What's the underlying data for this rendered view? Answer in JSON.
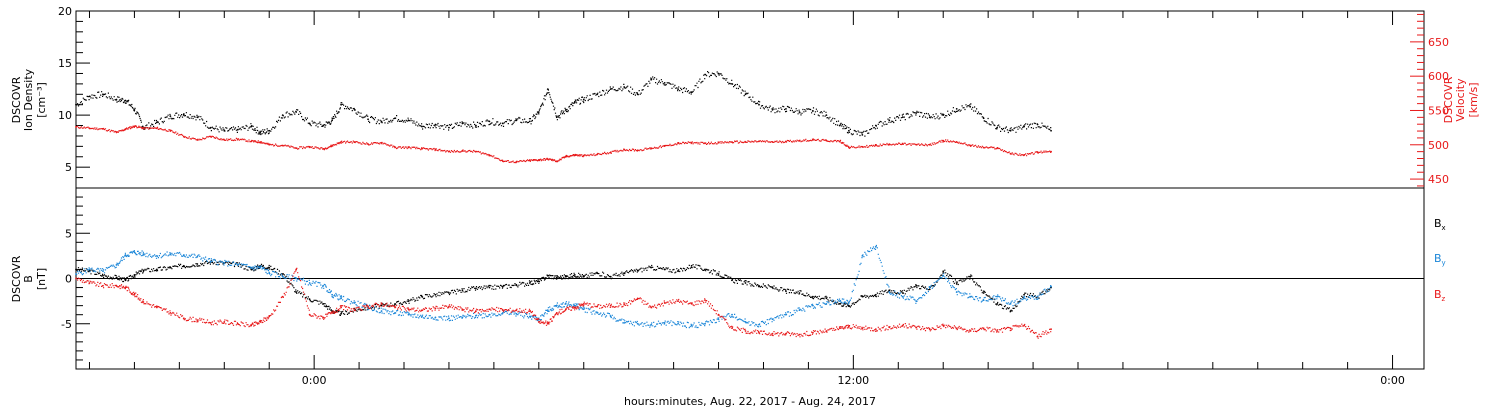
{
  "colors": {
    "black": "#000000",
    "red": "#e8191a",
    "blue": "#1b86d8",
    "zero_line": "#000000"
  },
  "chart_data": [
    {
      "type": "scatter",
      "panel": "top",
      "left_axis": {
        "label_lines": [
          "DSCOVR",
          "Ion Density",
          "[cm⁻³]"
        ],
        "ylim": [
          3,
          20
        ],
        "ticks": [
          "5",
          "10",
          "15",
          "20"
        ]
      },
      "right_axis": {
        "label_lines": [
          "DSCOVR",
          "Velocity",
          "[km/s]"
        ],
        "ylim": [
          437,
          695
        ],
        "ticks": [
          "450",
          "500",
          "550",
          "600",
          "650"
        ]
      },
      "x_hours": [
        -5.3,
        24.7
      ],
      "series": [
        {
          "axis": "left",
          "color": "black",
          "x": [
            -5.3,
            -5,
            -4.7,
            -4.4,
            -4.2,
            -4,
            -3.8,
            -3.5,
            -3.2,
            -2.9,
            -2.6,
            -2.3,
            -2,
            -1.7,
            -1.4,
            -1.2,
            -1,
            -0.7,
            -0.4,
            -0.1,
            0.2,
            0.4,
            0.6,
            0.9,
            1.2,
            1.5,
            1.8,
            2.1,
            2.4,
            2.7,
            3,
            3.3,
            3.6,
            3.9,
            4.2,
            4.5,
            4.8,
            5,
            5.2,
            5.4,
            5.6,
            5.8,
            6,
            6.3,
            6.6,
            6.9,
            7.2,
            7.5,
            7.8,
            8.1,
            8.4,
            8.7,
            9,
            9.3,
            9.6,
            9.9,
            10.2,
            10.5,
            10.8,
            11.1,
            11.4,
            11.7,
            11.9,
            12.2,
            12.5,
            12.8,
            13.1,
            13.4,
            13.7,
            14,
            14.3,
            14.6,
            14.9,
            15.2,
            15.5,
            15.8,
            16.1,
            16.4
          ],
          "y": [
            11,
            11.8,
            12,
            11.5,
            11.4,
            10.5,
            8.8,
            9.3,
            9.9,
            10.1,
            9.8,
            8.8,
            8.5,
            8.6,
            8.9,
            8.3,
            8.5,
            10,
            10.3,
            9.2,
            9,
            9.5,
            11,
            10.5,
            9.6,
            9.4,
            9.7,
            9.5,
            8.9,
            9.1,
            8.8,
            9.2,
            9,
            9.4,
            9.2,
            9.5,
            9.4,
            10.3,
            12.5,
            9.8,
            10.5,
            11.2,
            11.5,
            12,
            12.5,
            12.7,
            12,
            13.4,
            13.1,
            12.5,
            12.2,
            13.9,
            14,
            13,
            12,
            11,
            10.5,
            10.6,
            10.3,
            10.4,
            10,
            9,
            8.5,
            8.1,
            9,
            9.5,
            9.8,
            10.2,
            9.8,
            10,
            10.6,
            10.8,
            9.7,
            8.8,
            8.5,
            8.9,
            9.1,
            8.5
          ]
        },
        {
          "axis": "right",
          "color": "red",
          "x": [
            -5.3,
            -5,
            -4.7,
            -4.4,
            -4.2,
            -4,
            -3.8,
            -3.5,
            -3.2,
            -2.9,
            -2.6,
            -2.3,
            -2,
            -1.7,
            -1.4,
            -1.2,
            -1,
            -0.7,
            -0.4,
            -0.1,
            0.2,
            0.4,
            0.6,
            0.9,
            1.2,
            1.5,
            1.8,
            2.1,
            2.4,
            2.7,
            3,
            3.3,
            3.6,
            3.9,
            4.2,
            4.5,
            4.8,
            5,
            5.2,
            5.4,
            5.6,
            5.8,
            6,
            6.3,
            6.6,
            6.9,
            7.2,
            7.5,
            7.8,
            8.1,
            8.4,
            8.7,
            9,
            9.3,
            9.6,
            9.9,
            10.2,
            10.5,
            10.8,
            11.1,
            11.4,
            11.7,
            11.9,
            12.2,
            12.5,
            12.8,
            13.1,
            13.4,
            13.7,
            14,
            14.3,
            14.6,
            14.9,
            15.2,
            15.5,
            15.8,
            16.1,
            16.4
          ],
          "y": [
            526,
            524,
            523,
            518,
            523,
            527,
            524,
            524,
            520,
            512,
            507,
            512,
            507,
            508,
            505,
            504,
            500,
            499,
            495,
            497,
            494,
            499,
            504,
            504,
            501,
            503,
            496,
            496,
            494,
            493,
            490,
            491,
            490,
            485,
            476,
            475,
            477,
            478,
            479,
            476,
            483,
            485,
            484,
            486,
            489,
            493,
            492,
            495,
            498,
            502,
            503,
            502,
            503,
            504,
            504,
            505,
            504,
            505,
            506,
            507,
            506,
            505,
            496,
            497,
            499,
            501,
            501,
            500,
            500,
            506,
            504,
            499,
            496,
            495,
            487,
            485,
            489,
            490
          ]
        }
      ]
    },
    {
      "type": "scatter",
      "panel": "bottom",
      "left_axis": {
        "label_lines": [
          "DSCOVR",
          "B",
          "[nT]"
        ],
        "ylim": [
          -10,
          10
        ],
        "ticks": [
          "-5",
          "0",
          "5"
        ]
      },
      "x_hours": [
        -5.3,
        24.7
      ],
      "x_tick_labels": [
        "0:00",
        "12:00",
        "0:00"
      ],
      "x_tick_hours": [
        0,
        12,
        24
      ],
      "xlabel": "hours:minutes, Aug. 22, 2017 - Aug. 24, 2017",
      "legend": [
        {
          "label": "B",
          "subscript": "x",
          "color": "black"
        },
        {
          "label": "B",
          "subscript": "y",
          "color": "blue"
        },
        {
          "label": "B",
          "subscript": "z",
          "color": "red"
        }
      ],
      "series": [
        {
          "name": "Bx",
          "color": "black",
          "x": [
            -5.3,
            -5,
            -4.7,
            -4.4,
            -4.2,
            -4,
            -3.8,
            -3.5,
            -3.2,
            -2.9,
            -2.6,
            -2.3,
            -2,
            -1.7,
            -1.4,
            -1.2,
            -1,
            -0.7,
            -0.4,
            -0.1,
            0.2,
            0.4,
            0.6,
            0.9,
            1.2,
            1.5,
            1.8,
            2.1,
            2.4,
            2.7,
            3,
            3.3,
            3.6,
            3.9,
            4.2,
            4.5,
            4.8,
            5,
            5.2,
            5.4,
            5.6,
            5.8,
            6,
            6.3,
            6.6,
            6.9,
            7.2,
            7.5,
            7.8,
            8.1,
            8.4,
            8.7,
            9,
            9.3,
            9.6,
            9.9,
            10.2,
            10.5,
            10.8,
            11.1,
            11.4,
            11.7,
            11.9,
            12.2,
            12.5,
            12.8,
            13.1,
            13.4,
            13.7,
            14,
            14.3,
            14.6,
            14.9,
            15.2,
            15.5,
            15.8,
            16.1,
            16.4
          ],
          "y": [
            1,
            0.8,
            0.3,
            0.1,
            -0.2,
            0.4,
            0.9,
            1,
            1.2,
            1.4,
            1.6,
            1.8,
            1.7,
            1.5,
            1,
            1.4,
            1.2,
            0.5,
            -1.5,
            -2.3,
            -2.8,
            -3.6,
            -3.9,
            -3.5,
            -3.2,
            -3,
            -2.8,
            -2.5,
            -2,
            -1.8,
            -1.6,
            -1.3,
            -1.1,
            -1,
            -0.9,
            -0.7,
            -0.5,
            -0.3,
            0.3,
            0.1,
            0.2,
            0.4,
            0.2,
            0.6,
            0.2,
            0.6,
            0.9,
            1.2,
            1,
            0.8,
            1.4,
            1,
            0.5,
            -0.2,
            -0.5,
            -0.8,
            -1,
            -1.4,
            -1.6,
            -2,
            -2.2,
            -2.8,
            -3,
            -2,
            -1.8,
            -1.3,
            -1.6,
            -0.8,
            -1.2,
            0.8,
            -0.6,
            0.2,
            -1.6,
            -2.8,
            -3.6,
            -1.8,
            -2,
            -1
          ]
        },
        {
          "name": "By",
          "color": "blue",
          "x": [
            -5.3,
            -5,
            -4.7,
            -4.4,
            -4.2,
            -4,
            -3.8,
            -3.5,
            -3.2,
            -2.9,
            -2.6,
            -2.3,
            -2,
            -1.7,
            -1.4,
            -1.2,
            -1,
            -0.7,
            -0.4,
            -0.1,
            0.2,
            0.4,
            0.6,
            0.9,
            1.2,
            1.5,
            1.8,
            2.1,
            2.4,
            2.7,
            3,
            3.3,
            3.6,
            3.9,
            4.2,
            4.5,
            4.8,
            5,
            5.2,
            5.4,
            5.6,
            5.8,
            6,
            6.3,
            6.6,
            6.9,
            7.2,
            7.5,
            7.8,
            8.1,
            8.4,
            8.7,
            9,
            9.3,
            9.6,
            9.9,
            10.2,
            10.5,
            10.8,
            11.1,
            11.4,
            11.7,
            11.9,
            12.2,
            12.5,
            12.8,
            13.1,
            13.4,
            13.7,
            14,
            14.3,
            14.6,
            14.9,
            15.2,
            15.5,
            15.8,
            16.1,
            16.4
          ],
          "y": [
            0.5,
            1,
            0.8,
            1.5,
            2.6,
            2.9,
            2.7,
            2.5,
            2.7,
            2.6,
            2.4,
            1.9,
            1.7,
            1.5,
            1.2,
            1.2,
            0.6,
            0.2,
            0,
            -0.5,
            -0.8,
            -1.8,
            -2.2,
            -2.7,
            -3.2,
            -3.6,
            -3.8,
            -4,
            -4.2,
            -4.3,
            -4.4,
            -4.3,
            -4.1,
            -4,
            -3.8,
            -3.9,
            -4.2,
            -4.5,
            -3.5,
            -3,
            -2.8,
            -3,
            -3.4,
            -3.8,
            -4.2,
            -4.9,
            -5,
            -5.1,
            -4.9,
            -5,
            -5.2,
            -5,
            -4.5,
            -4,
            -4.8,
            -5.1,
            -4.5,
            -4,
            -3.5,
            -3,
            -2.8,
            -2.5,
            -2.7,
            2.5,
            3.5,
            -1.5,
            -2,
            -2.5,
            -1,
            0.3,
            -1.5,
            -2,
            -2.4,
            -2,
            -2.8,
            -2.2,
            -2,
            -0.9
          ]
        },
        {
          "name": "Bz",
          "color": "red",
          "x": [
            -5.3,
            -5,
            -4.7,
            -4.4,
            -4.2,
            -4,
            -3.8,
            -3.5,
            -3.2,
            -2.9,
            -2.6,
            -2.3,
            -2,
            -1.7,
            -1.4,
            -1.2,
            -1,
            -0.7,
            -0.4,
            -0.1,
            0.2,
            0.4,
            0.6,
            0.9,
            1.2,
            1.5,
            1.8,
            2.1,
            2.4,
            2.7,
            3,
            3.3,
            3.6,
            3.9,
            4.2,
            4.5,
            4.8,
            5,
            5.2,
            5.4,
            5.6,
            5.8,
            6,
            6.3,
            6.6,
            6.9,
            7.2,
            7.5,
            7.8,
            8.1,
            8.4,
            8.7,
            9,
            9.3,
            9.6,
            9.9,
            10.2,
            10.5,
            10.8,
            11.1,
            11.4,
            11.7,
            11.9,
            12.2,
            12.5,
            12.8,
            13.1,
            13.4,
            13.7,
            14,
            14.3,
            14.6,
            14.9,
            15.2,
            15.5,
            15.8,
            16.1,
            16.4
          ],
          "y": [
            0,
            -0.5,
            -0.8,
            -0.8,
            -1,
            -1.8,
            -2.6,
            -3.2,
            -3.8,
            -4.4,
            -4.6,
            -4.9,
            -4.8,
            -5,
            -5.2,
            -4.8,
            -4.2,
            -2,
            1,
            -4,
            -4.3,
            -3.8,
            -3.2,
            -3.5,
            -3.1,
            -2.8,
            -3.2,
            -3.4,
            -3.5,
            -3.3,
            -3.1,
            -3.4,
            -3.6,
            -3.4,
            -3.5,
            -3.5,
            -3.6,
            -4.8,
            -5,
            -3.8,
            -3.4,
            -3.2,
            -2.8,
            -3.1,
            -3,
            -2.9,
            -2.2,
            -3.2,
            -2.7,
            -2.5,
            -2.8,
            -2.4,
            -4,
            -5.5,
            -5.8,
            -6,
            -6.1,
            -6.1,
            -6.2,
            -6,
            -5.8,
            -5.5,
            -5.3,
            -5.5,
            -5.6,
            -5.4,
            -5.2,
            -5.4,
            -5.6,
            -5.2,
            -5.5,
            -5.8,
            -5.5,
            -5.8,
            -5.5,
            -5.2,
            -6.4,
            -5.6
          ]
        }
      ]
    }
  ]
}
